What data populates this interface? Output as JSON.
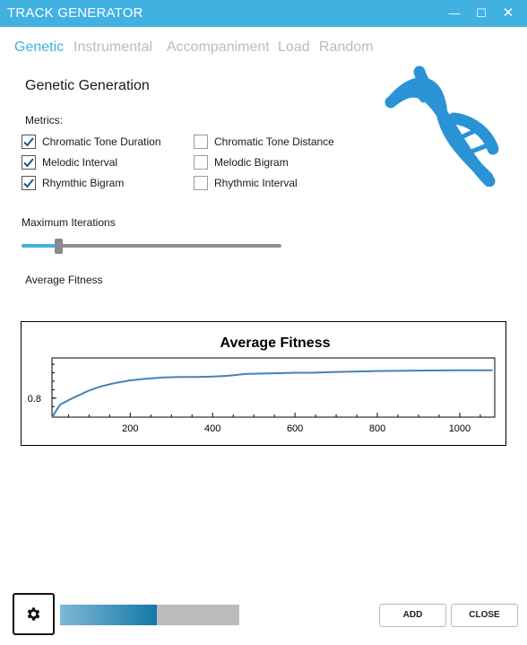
{
  "window": {
    "title": "TRACK GENERATOR",
    "minimize_glyph": "—",
    "maximize_glyph": "☐",
    "close_glyph": "✕"
  },
  "tabs": [
    {
      "label": "Genetic",
      "active": true
    },
    {
      "label": "Instrumental",
      "active": false
    },
    {
      "label": "Accompaniment",
      "active": false
    },
    {
      "label": "Load",
      "active": false
    },
    {
      "label": "Random",
      "active": false
    }
  ],
  "genetic": {
    "section_title": "Genetic Generation",
    "metrics_label": "Metrics:",
    "metrics": [
      {
        "label": "Chromatic Tone Duration",
        "checked": true
      },
      {
        "label": "Melodic Interval",
        "checked": true
      },
      {
        "label": "Rhymthic Bigram",
        "checked": true
      },
      {
        "label": "Chromatic Tone Distance",
        "checked": false
      },
      {
        "label": "Melodic Bigram",
        "checked": false
      },
      {
        "label": "Rhythmic Interval",
        "checked": false
      }
    ],
    "iterations_label": "Maximum Iterations",
    "iterations_slider_fraction": 0.14,
    "fitness_label": "Average Fitness",
    "dna_icon": "dna-icon"
  },
  "chart_data": {
    "type": "line",
    "title": "Average Fitness",
    "xlabel": "",
    "ylabel": "",
    "x_ticks": [
      200,
      400,
      600,
      800,
      1000
    ],
    "y_ticks": [
      0.8
    ],
    "xlim": [
      10,
      1085
    ],
    "ylim": [
      0.755,
      0.895
    ],
    "grid": false,
    "line_color": "#4682b4",
    "series": [
      {
        "x": [
          10,
          30,
          60,
          100,
          130,
          160,
          200,
          240,
          280,
          320,
          360,
          400,
          440,
          480,
          520,
          560,
          600,
          640,
          700,
          800,
          900,
          1000,
          1080
        ],
        "values": [
          0.755,
          0.785,
          0.8,
          0.818,
          0.828,
          0.835,
          0.842,
          0.846,
          0.849,
          0.85,
          0.85,
          0.851,
          0.853,
          0.857,
          0.858,
          0.859,
          0.86,
          0.86,
          0.862,
          0.864,
          0.865,
          0.866,
          0.866
        ]
      }
    ]
  },
  "footer": {
    "settings_icon": "gear-icon",
    "progress_fraction": 0.54,
    "progress_colors": [
      "#7eb8d6",
      "#1479a7"
    ],
    "add_label": "ADD",
    "close_label": "CLOSE"
  },
  "colors": {
    "accent": "#41b1e1",
    "tab_inactive": "#b9bcbf",
    "checkmark": "#1a5a80"
  }
}
